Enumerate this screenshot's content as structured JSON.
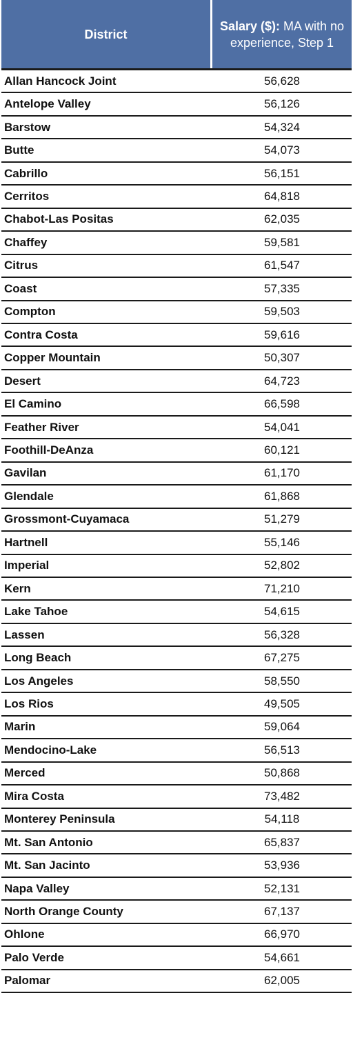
{
  "table": {
    "header": {
      "district": "District",
      "salary_bold": "Salary ($):",
      "salary_rest": " MA with no experience, Step 1"
    },
    "rows": [
      {
        "district": "Allan Hancock Joint",
        "salary": "56,628"
      },
      {
        "district": "Antelope Valley",
        "salary": "56,126"
      },
      {
        "district": "Barstow",
        "salary": "54,324"
      },
      {
        "district": "Butte",
        "salary": "54,073"
      },
      {
        "district": "Cabrillo",
        "salary": "56,151"
      },
      {
        "district": "Cerritos",
        "salary": "64,818"
      },
      {
        "district": "Chabot-Las Positas",
        "salary": "62,035"
      },
      {
        "district": "Chaffey",
        "salary": "59,581"
      },
      {
        "district": "Citrus",
        "salary": "61,547"
      },
      {
        "district": "Coast",
        "salary": "57,335"
      },
      {
        "district": "Compton",
        "salary": "59,503"
      },
      {
        "district": "Contra Costa",
        "salary": "59,616"
      },
      {
        "district": "Copper Mountain",
        "salary": "50,307"
      },
      {
        "district": "Desert",
        "salary": "64,723"
      },
      {
        "district": "El Camino",
        "salary": "66,598"
      },
      {
        "district": "Feather River",
        "salary": "54,041"
      },
      {
        "district": "Foothill-DeAnza",
        "salary": "60,121"
      },
      {
        "district": "Gavilan",
        "salary": "61,170"
      },
      {
        "district": "Glendale",
        "salary": "61,868"
      },
      {
        "district": "Grossmont-Cuyamaca",
        "salary": "51,279"
      },
      {
        "district": "Hartnell",
        "salary": "55,146"
      },
      {
        "district": "Imperial",
        "salary": "52,802"
      },
      {
        "district": "Kern",
        "salary": "71,210"
      },
      {
        "district": "Lake Tahoe",
        "salary": "54,615"
      },
      {
        "district": "Lassen",
        "salary": "56,328"
      },
      {
        "district": "Long Beach",
        "salary": "67,275"
      },
      {
        "district": "Los Angeles",
        "salary": "58,550"
      },
      {
        "district": "Los Rios",
        "salary": "49,505"
      },
      {
        "district": "Marin",
        "salary": "59,064"
      },
      {
        "district": "Mendocino-Lake",
        "salary": "56,513"
      },
      {
        "district": "Merced",
        "salary": "50,868"
      },
      {
        "district": "Mira Costa",
        "salary": "73,482"
      },
      {
        "district": "Monterey Peninsula",
        "salary": "54,118"
      },
      {
        "district": "Mt. San Antonio",
        "salary": "65,837"
      },
      {
        "district": "Mt. San Jacinto",
        "salary": "53,936"
      },
      {
        "district": "Napa Valley",
        "salary": "52,131"
      },
      {
        "district": "North Orange County",
        "salary": "67,137"
      },
      {
        "district": "Ohlone",
        "salary": "66,970"
      },
      {
        "district": "Palo Verde",
        "salary": "54,661"
      },
      {
        "district": "Palomar",
        "salary": "62,005"
      }
    ]
  },
  "colors": {
    "header_bg": "#4f6fa4",
    "header_text": "#ffffff",
    "rule": "#1a1a1a"
  }
}
